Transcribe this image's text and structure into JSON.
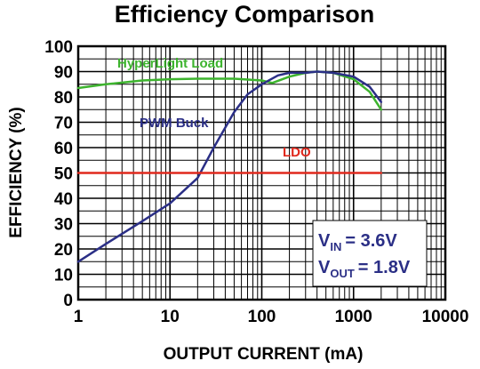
{
  "chart_data": {
    "type": "line",
    "title": "Efficiency Comparison",
    "xlabel": "OUTPUT CURRENT (mA)",
    "ylabel": "EFFICIENCY (%)",
    "x_scale": "log",
    "xlim": [
      1,
      10000
    ],
    "ylim": [
      0,
      100
    ],
    "grid": true,
    "x_ticks": [
      "1",
      "10",
      "100",
      "1000",
      "10000"
    ],
    "y_ticks": [
      "0",
      "10",
      "20",
      "30",
      "40",
      "50",
      "60",
      "70",
      "80",
      "90",
      "100"
    ],
    "series": [
      {
        "name": "HyperLight Load",
        "color": "#3db42e",
        "x": [
          1,
          2,
          5,
          10,
          20,
          50,
          100,
          130,
          200,
          300,
          400,
          600,
          1000,
          1500,
          2000
        ],
        "y": [
          83.5,
          85,
          86.5,
          87,
          87.2,
          87.2,
          86.5,
          85.5,
          88,
          89.5,
          90,
          89.5,
          87,
          82,
          75
        ]
      },
      {
        "name": "PWM Buck",
        "color": "#2b2f86",
        "x": [
          1,
          2,
          5,
          10,
          20,
          30,
          50,
          70,
          100,
          150,
          200,
          300,
          400,
          600,
          1000,
          1500,
          2000
        ],
        "y": [
          15,
          22,
          31,
          38,
          48,
          60,
          74,
          81,
          85,
          88.5,
          89.5,
          89.5,
          90,
          89.5,
          88,
          84,
          78
        ]
      },
      {
        "name": "LDO",
        "color": "#e0291d",
        "x": [
          1,
          2000
        ],
        "y": [
          50,
          50
        ]
      }
    ],
    "annotations": {
      "vin_main": "V",
      "vin_sub": "IN",
      "vin_value": "= 3.6V",
      "vout_main": "V",
      "vout_sub": "OUT",
      "vout_value": "= 1.8V"
    }
  }
}
